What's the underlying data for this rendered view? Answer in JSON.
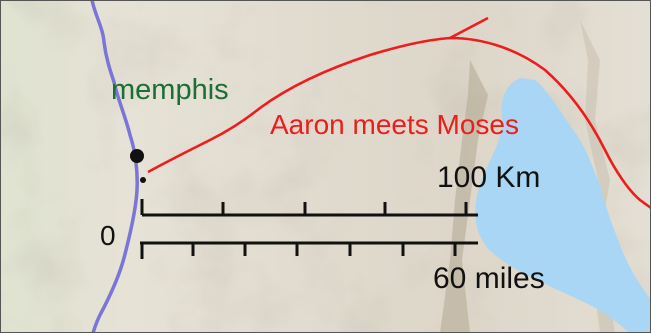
{
  "map": {
    "city": {
      "name": "memphis"
    },
    "route": {
      "label": "Aaron meets Moses"
    },
    "scale": {
      "zero": "0",
      "km_label": "100 Km",
      "miles_label": "60 miles"
    }
  },
  "colors": {
    "land": "#ddd6c9",
    "terrain_light": "#ece8de",
    "terrain_shadow": "#b9b0a1",
    "river": "#7a75d6",
    "lake": "#a9d6f4",
    "route": "#ee1c1c",
    "city_label": "#1c6e35",
    "route_label": "#ee1c1c",
    "scale": "#111111",
    "frame": "#555555"
  },
  "icons": {
    "city_marker": "black-dot-icon",
    "city_point": "small-dot-icon"
  }
}
